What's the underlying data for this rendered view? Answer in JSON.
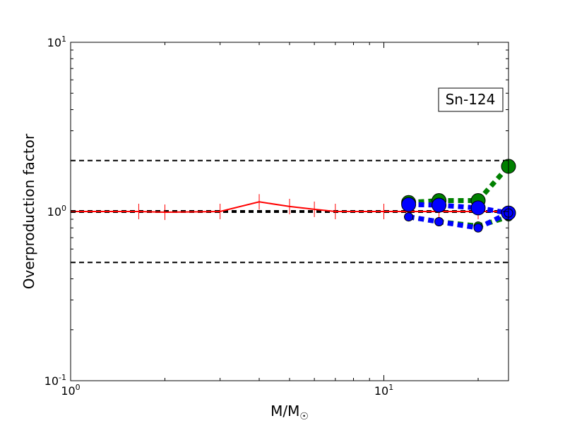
{
  "chart_data": {
    "type": "line",
    "title": "",
    "xlabel": "M/M",
    "xlabel_sub": "☉",
    "ylabel": "Overproduction factor",
    "xscale": "log",
    "yscale": "log",
    "xlim": [
      1,
      25
    ],
    "ylim": [
      0.1,
      10
    ],
    "xticks": [
      {
        "value": 1,
        "base": "10",
        "exp": "0"
      },
      {
        "value": 10,
        "base": "10",
        "exp": "1"
      }
    ],
    "yticks": [
      {
        "value": 0.1,
        "base": "10",
        "exp": "-1"
      },
      {
        "value": 1,
        "base": "10",
        "exp": "0"
      },
      {
        "value": 10,
        "base": "10",
        "exp": "1"
      }
    ],
    "annotation": "Sn-124",
    "reference_lines": [
      {
        "y": 2.0,
        "color": "#000000",
        "style": "dashed"
      },
      {
        "y": 1.0,
        "color": "#000000",
        "style": "dashed-thick"
      },
      {
        "y": 0.5,
        "color": "#000000",
        "style": "dashed"
      }
    ],
    "series": [
      {
        "color": "#ff0000",
        "style": "solid",
        "marker": "vline",
        "x": [
          1.0,
          1.65,
          2.0,
          3.0,
          4.0,
          5.0,
          6.0,
          7.0,
          10.0,
          12.0,
          15.0,
          20.0,
          25.0
        ],
        "y": [
          1.0,
          1.0,
          0.99,
          1.0,
          1.14,
          1.07,
          1.03,
          1.0,
          1.0,
          1.0,
          1.0,
          1.0,
          1.0
        ]
      },
      {
        "color": "#008000",
        "style": "dotted-thick",
        "marker": "circle-large",
        "x": [
          12,
          15,
          20,
          25
        ],
        "y": [
          1.13,
          1.16,
          1.16,
          1.85
        ]
      },
      {
        "color": "#008000",
        "style": "dotted-thick",
        "marker": "circle-small",
        "x": [
          12,
          15,
          20,
          25
        ],
        "y": [
          0.93,
          0.87,
          0.82,
          0.93
        ]
      },
      {
        "color": "#0000ff",
        "style": "dotted-thick",
        "marker": "circle-large",
        "x": [
          12,
          15,
          20,
          25
        ],
        "y": [
          1.1,
          1.09,
          1.05,
          0.98
        ]
      },
      {
        "color": "#0000ff",
        "style": "dotted-thick",
        "marker": "circle-small",
        "x": [
          12,
          15,
          20,
          25
        ],
        "y": [
          0.93,
          0.87,
          0.8,
          0.98
        ]
      }
    ]
  }
}
